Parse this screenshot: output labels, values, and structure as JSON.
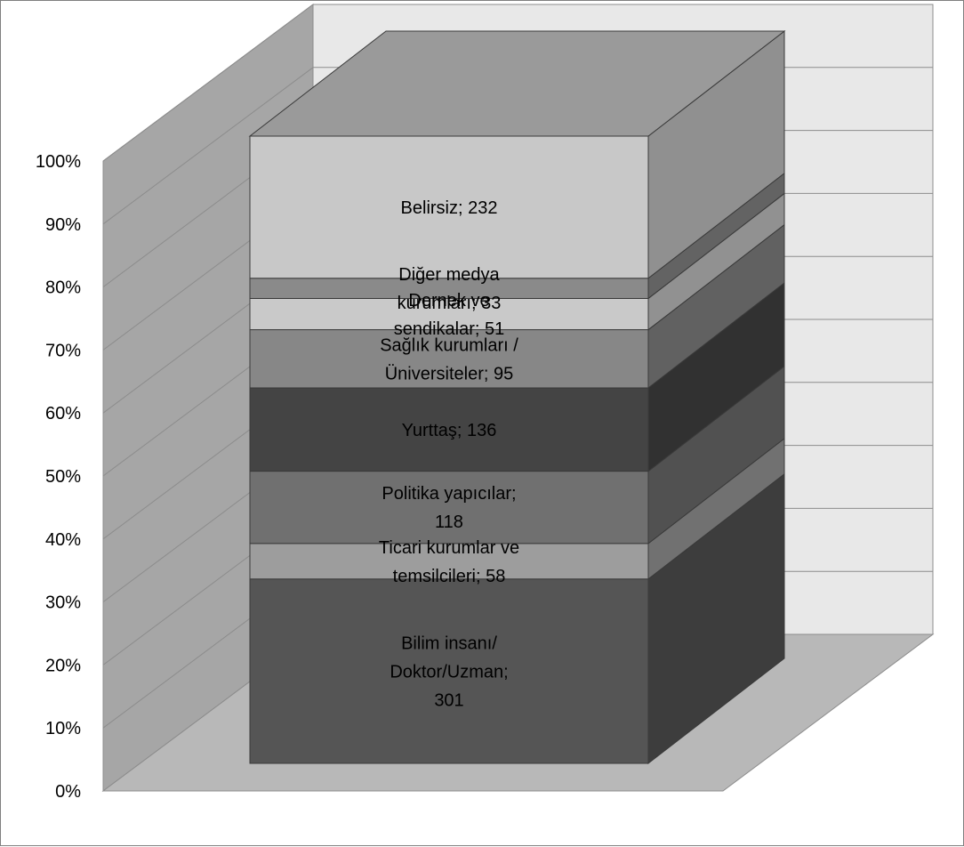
{
  "chart_data": {
    "type": "bar",
    "variant": "stacked-100-3d",
    "title": "",
    "xlabel": "",
    "ylabel": "",
    "ylim": [
      0,
      100
    ],
    "y_ticks": [
      "0%",
      "10%",
      "20%",
      "30%",
      "40%",
      "50%",
      "60%",
      "70%",
      "80%",
      "90%",
      "100%"
    ],
    "grid": true,
    "legend": "none",
    "segments": [
      {
        "name": "Bilim insanı/ Doktor/Uzman",
        "value": 301,
        "lines": [
          "Bilim insanı/",
          "Doktor/Uzman;",
          "301"
        ],
        "color": "#555555"
      },
      {
        "name": "Ticari kurumlar ve temsilcileri",
        "value": 58,
        "lines": [
          "Ticari kurumlar ve",
          "temsilcileri; 58"
        ],
        "color": "#9d9d9d"
      },
      {
        "name": "Politika yapıcılar",
        "value": 118,
        "lines": [
          "Politika yapıcılar;",
          "118"
        ],
        "color": "#707070"
      },
      {
        "name": "Yurttaş",
        "value": 136,
        "lines": [
          "Yurttaş; 136"
        ],
        "color": "#444444"
      },
      {
        "name": "Sağlık kurumları / Üniversiteler",
        "value": 95,
        "lines": [
          "Sağlık kurumları /",
          "Üniversiteler; 95"
        ],
        "color": "#878787"
      },
      {
        "name": "Dernek ve sendikalar",
        "value": 51,
        "lines": [
          "Dernek ve",
          "sendikalar; 51"
        ],
        "color": "#c9c9c9"
      },
      {
        "name": "Diğer medya kurumları",
        "value": 33,
        "lines": [
          "Diğer medya",
          "kurumları; 33"
        ],
        "color": "#8a8a8a"
      },
      {
        "name": "Belirsiz",
        "value": 232,
        "lines": [
          "Belirsiz; 232"
        ],
        "color": "#c8c8c8"
      }
    ]
  }
}
